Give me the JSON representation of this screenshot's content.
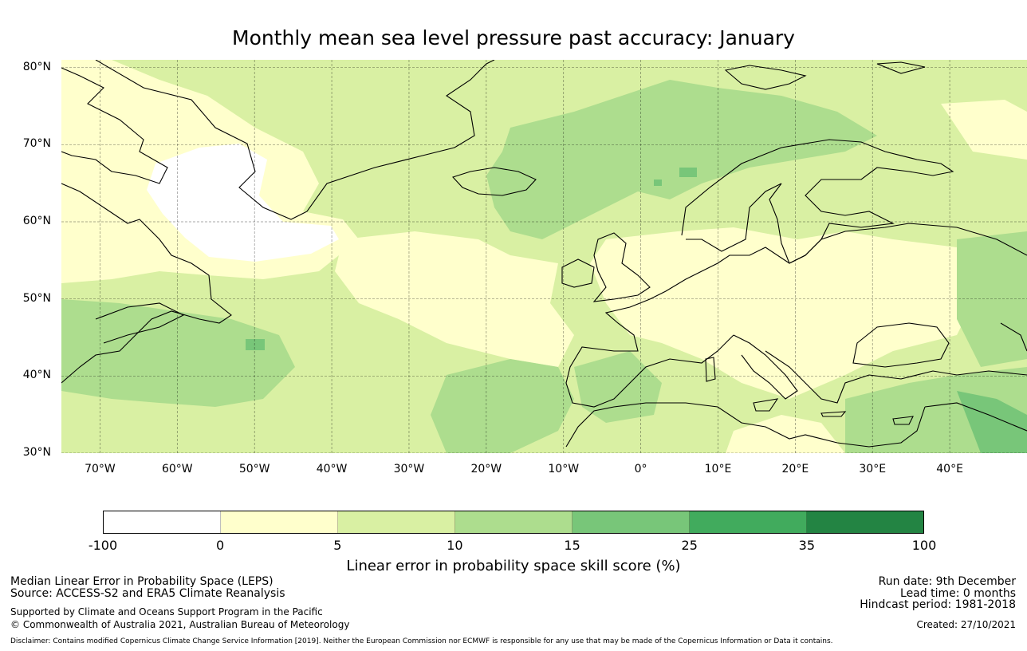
{
  "title": "Monthly mean sea level pressure past accuracy: January",
  "map": {
    "extent": {
      "lon_min": -75,
      "lon_max": 50,
      "lat_min": 30,
      "lat_max": 81
    },
    "lat_ticks": [
      {
        "value": 80,
        "label": "80°N"
      },
      {
        "value": 70,
        "label": "70°N"
      },
      {
        "value": 60,
        "label": "60°N"
      },
      {
        "value": 50,
        "label": "50°N"
      },
      {
        "value": 40,
        "label": "40°N"
      },
      {
        "value": 30,
        "label": "30°N"
      }
    ],
    "lon_ticks": [
      {
        "value": -70,
        "label": "70°W"
      },
      {
        "value": -60,
        "label": "60°W"
      },
      {
        "value": -50,
        "label": "50°W"
      },
      {
        "value": -40,
        "label": "40°W"
      },
      {
        "value": -30,
        "label": "30°W"
      },
      {
        "value": -20,
        "label": "20°W"
      },
      {
        "value": -10,
        "label": "10°W"
      },
      {
        "value": 0,
        "label": "0°"
      },
      {
        "value": 10,
        "label": "10°E"
      },
      {
        "value": 20,
        "label": "20°E"
      },
      {
        "value": 30,
        "label": "30°E"
      },
      {
        "value": 40,
        "label": "40°E"
      }
    ]
  },
  "colorbar": {
    "ticks": [
      "-100",
      "0",
      "5",
      "10",
      "15",
      "25",
      "35",
      "100"
    ],
    "colors": [
      "#ffffff",
      "#ffffcc",
      "#d9f0a3",
      "#addd8e",
      "#78c679",
      "#41ab5d",
      "#238443"
    ],
    "label": "Linear error in probability space skill score (%)"
  },
  "footer": {
    "left_line1": "Median Linear Error in Probability Space (LEPS)",
    "left_line2": "Source: ACCESS-S2 and ERA5 Climate Reanalysis",
    "left_line3": "Supported by Climate and Oceans Support Program in the Pacific",
    "left_line4": "© Commonwealth of Australia 2021, Australian Bureau of Meteorology",
    "right_line1": "Run date: 9th December",
    "right_line2": "Lead time: 0 months",
    "right_line3": "Hindcast period: 1981-2018",
    "right_line4": "Created: 27/10/2021",
    "disclaimer": "Disclaimer: Contains modified Copernicus Climate Change Service Information [2019]. Neither the European Commission nor ECMWF is responsible for any use that may be made of the Copernicus Information or Data it contains."
  }
}
